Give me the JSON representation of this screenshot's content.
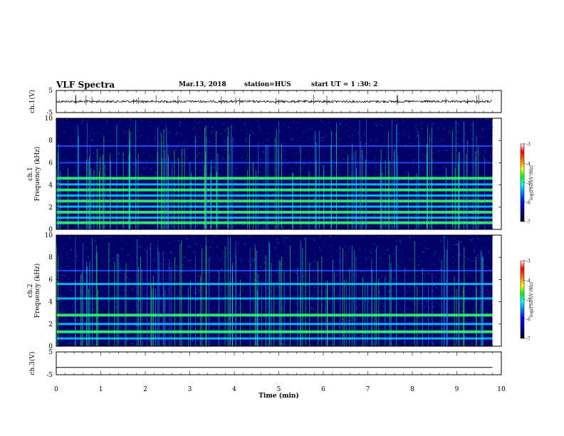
{
  "header": {
    "title": "VLF Spectra",
    "date": "Mar.13, 2018",
    "station": "station=HUS",
    "start": "start UT =  1 :30: 2"
  },
  "colors": {
    "spectrogram_background": "#000066",
    "band_blue": "#1e50ff",
    "band_green": "#33ff66",
    "waveform": "#000000",
    "colormap": [
      "#000000",
      "#000080",
      "#0000ff",
      "#0080ff",
      "#00ffff",
      "#00ff00",
      "#ffff00",
      "#ff8000",
      "#ff0000",
      "#ffffff"
    ]
  },
  "chart_data": [
    {
      "type": "line",
      "ylabel": "ch.1(V)",
      "ylim": [
        -5,
        5
      ],
      "yticks": [
        5,
        -5
      ],
      "xlim": [
        0,
        10
      ],
      "series": [
        {
          "x": [
            0,
            9.8
          ],
          "y": [
            0,
            0
          ]
        }
      ]
    },
    {
      "type": "heatmap",
      "ylabel": "ch.1\nFrequency (kHz)",
      "ylim": [
        0,
        10
      ],
      "yticks": [
        0,
        2,
        4,
        6,
        8,
        10
      ],
      "xlim": [
        0,
        10
      ],
      "data_end_x": 9.8,
      "bands": [
        {
          "freq": 0.6,
          "level": "high"
        },
        {
          "freq": 1.05,
          "level": "mid"
        },
        {
          "freq": 1.55,
          "level": "high"
        },
        {
          "freq": 2.05,
          "level": "mid"
        },
        {
          "freq": 2.55,
          "level": "high"
        },
        {
          "freq": 3.05,
          "level": "mid"
        },
        {
          "freq": 3.55,
          "level": "high"
        },
        {
          "freq": 4.05,
          "level": "mid"
        },
        {
          "freq": 4.6,
          "level": "high"
        },
        {
          "freq": 6.0,
          "level": "low"
        },
        {
          "freq": 7.5,
          "level": "low"
        }
      ],
      "colorbar": {
        "label": "log(PSD)(V²/Hz)",
        "range": [
          -7,
          -3
        ],
        "ticks": [
          -3,
          -4,
          -5,
          -6,
          -7
        ]
      }
    },
    {
      "type": "heatmap",
      "ylabel": "ch.2\nFrequency (kHz)",
      "ylim": [
        0,
        10
      ],
      "yticks": [
        0,
        2,
        4,
        6,
        8,
        10
      ],
      "xlim": [
        0,
        10
      ],
      "data_end_x": 9.8,
      "bands": [
        {
          "freq": 0.7,
          "level": "mid"
        },
        {
          "freq": 1.3,
          "level": "high"
        },
        {
          "freq": 2.0,
          "level": "mid"
        },
        {
          "freq": 2.8,
          "level": "high"
        },
        {
          "freq": 4.3,
          "level": "mid"
        },
        {
          "freq": 5.6,
          "level": "mid"
        },
        {
          "freq": 6.8,
          "level": "low"
        }
      ],
      "colorbar": {
        "label": "log(PSD)(V²/Hz)",
        "range": [
          -7,
          -3
        ],
        "ticks": [
          -3,
          -4,
          -5,
          -6,
          -7
        ]
      }
    },
    {
      "type": "line",
      "ylabel": "ch.3(V)",
      "ylim": [
        -5,
        5
      ],
      "yticks": [
        5,
        -5
      ],
      "xlim": [
        0,
        10
      ],
      "xlabel": "Time (min)",
      "xticks": [
        0,
        1,
        2,
        3,
        4,
        5,
        6,
        7,
        8,
        9,
        10
      ],
      "series": [
        {
          "x": [
            0,
            9.8
          ],
          "y": [
            -1.8,
            -1.8
          ]
        }
      ]
    }
  ]
}
